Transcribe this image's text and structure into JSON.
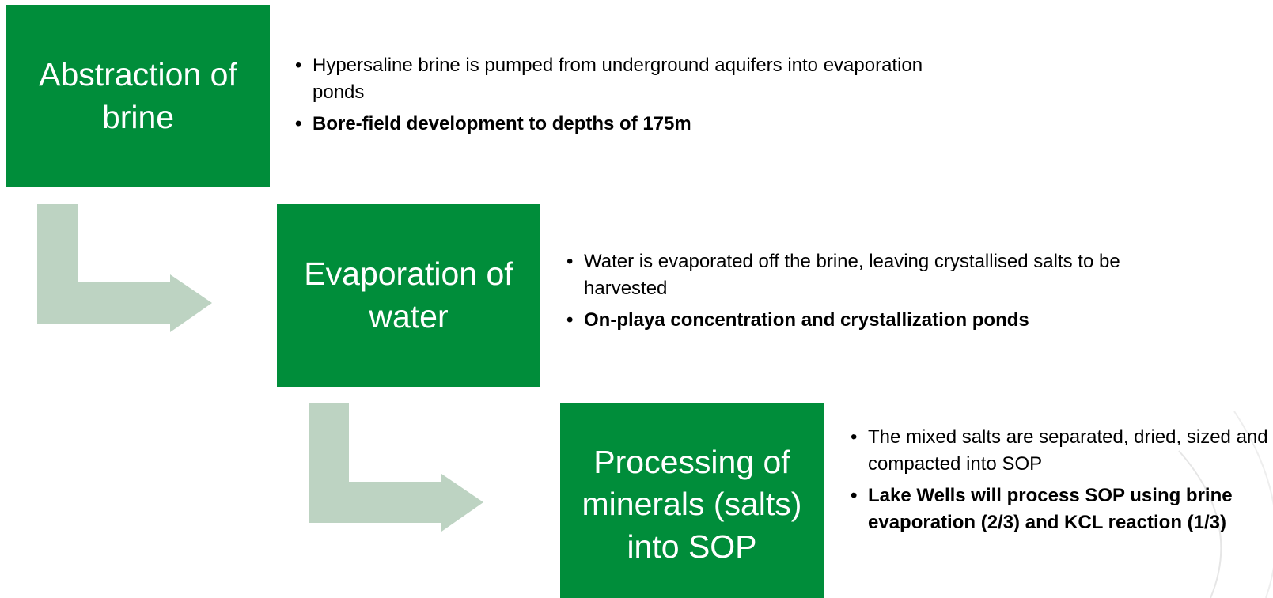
{
  "steps": [
    {
      "title": "Abstraction of brine",
      "bullets": [
        "Hypersaline brine is pumped from underground aquifers into evaporation ponds",
        "Bore-field development to depths of 175m"
      ]
    },
    {
      "title": "Evaporation of water",
      "bullets": [
        "Water is evaporated off the brine, leaving crystallised salts to be harvested",
        "On-playa concentration and crystallization ponds"
      ]
    },
    {
      "title": "Processing of minerals (salts) into SOP",
      "bullets": [
        "The mixed salts are separated, dried, sized and compacted into SOP",
        "Lake Wells will process SOP using brine evaporation (2/3) and KCL reaction (1/3)"
      ]
    }
  ]
}
